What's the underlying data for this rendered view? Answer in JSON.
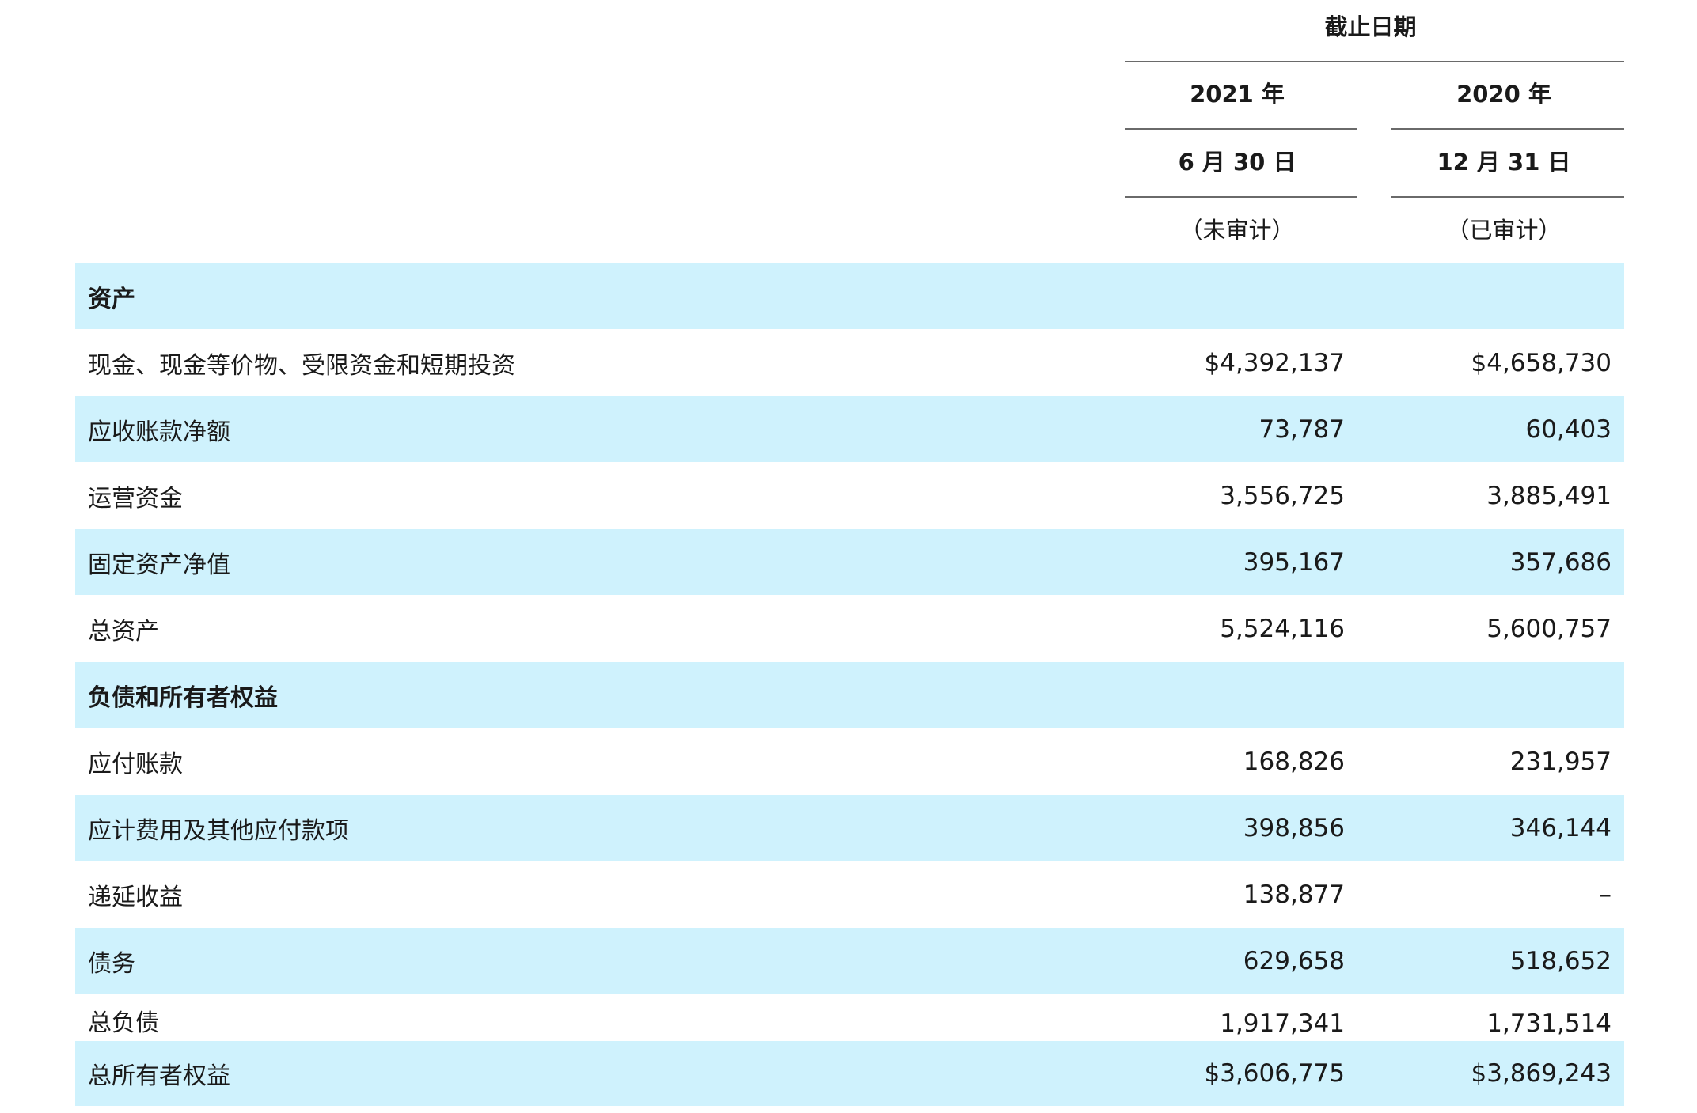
{
  "header": {
    "group_label": "截止日期",
    "col1": {
      "year": "2021 年",
      "date": "6 月 30 日",
      "audit": "（未审计）"
    },
    "col2": {
      "year": "2020 年",
      "date": "12 月 31 日",
      "audit": "（已审计）"
    }
  },
  "rows": [
    {
      "label": "资产",
      "v1": "",
      "v2": ""
    },
    {
      "label": "现金、现金等价物、受限资金和短期投资",
      "v1": "$4,392,137",
      "v2": "$4,658,730"
    },
    {
      "label": "应收账款净额",
      "v1": "73,787",
      "v2": "60,403"
    },
    {
      "label": "运营资金",
      "v1": "3,556,725",
      "v2": "3,885,491"
    },
    {
      "label": "固定资产净值",
      "v1": "395,167",
      "v2": "357,686"
    },
    {
      "label": "总资产",
      "v1": "5,524,116",
      "v2": "5,600,757"
    },
    {
      "label": "负债和所有者权益",
      "v1": "",
      "v2": ""
    },
    {
      "label": "应付账款",
      "v1": "168,826",
      "v2": "231,957"
    },
    {
      "label": "应计费用及其他应付款项",
      "v1": "398,856",
      "v2": "346,144"
    },
    {
      "label": "递延收益",
      "v1": "138,877",
      "v2": "–"
    },
    {
      "label": "债务",
      "v1": "629,658",
      "v2": "518,652"
    },
    {
      "label": "总负债",
      "v1": "1,917,341",
      "v2": "1,731,514"
    },
    {
      "label": "总所有者权益",
      "v1": "$3,606,775",
      "v2": "$3,869,243"
    }
  ]
}
